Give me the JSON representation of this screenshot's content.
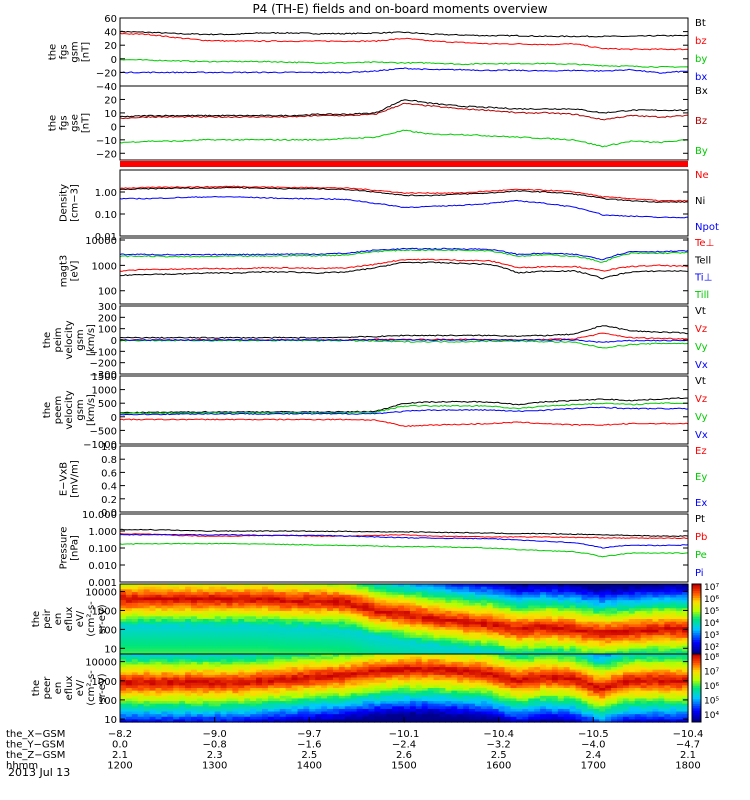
{
  "title": "P4 (TH-E) fields and on-board moments overview",
  "chart_data": [
    {
      "type": "line",
      "ylabel": [
        "the",
        "fgs",
        "gsm",
        "[nT]"
      ],
      "yticks": [
        "60",
        "40",
        "20",
        "0",
        "−20",
        "−40"
      ],
      "ylim": [
        -40,
        60
      ],
      "legend": [
        {
          "name": "Bt",
          "color": "#000000"
        },
        {
          "name": "bz",
          "color": "#ff0000"
        },
        {
          "name": "by",
          "color": "#00cc00"
        },
        {
          "name": "bx",
          "color": "#0000ff"
        }
      ],
      "series": [
        {
          "name": "Bt",
          "values": [
            40,
            39,
            37,
            36,
            36,
            38,
            38,
            37,
            37,
            38,
            39,
            36,
            35,
            34,
            34,
            33,
            33,
            33,
            33,
            34,
            34
          ]
        },
        {
          "name": "bz",
          "values": [
            37,
            36,
            31,
            27,
            26,
            26,
            26,
            26,
            26,
            26,
            30,
            26,
            24,
            22,
            22,
            21,
            22,
            15,
            14,
            14,
            14
          ]
        },
        {
          "name": "by",
          "values": [
            -1,
            -2,
            -3,
            -4,
            -4,
            -4,
            -5,
            -6,
            -6,
            -5,
            -6,
            -6,
            -8,
            -7,
            -7,
            -7,
            -8,
            -10,
            -11,
            -12,
            -12
          ]
        },
        {
          "name": "bx",
          "values": [
            -20,
            -20,
            -20,
            -20,
            -20,
            -20,
            -20,
            -20,
            -20,
            -18,
            -14,
            -16,
            -16,
            -17,
            -17,
            -18,
            -17,
            -18,
            -16,
            -21,
            -18
          ]
        }
      ]
    },
    {
      "type": "line",
      "ylabel": [
        "the",
        "fgs",
        "gse",
        "[nT]"
      ],
      "yticks": [
        "20",
        "10",
        "0",
        "−10",
        "−20"
      ],
      "ylim": [
        -25,
        30
      ],
      "legend": [
        {
          "name": "Bx",
          "color": "#000000"
        },
        {
          "name": "Bz",
          "color": "#b20000"
        },
        {
          "name": "By",
          "color": "#00cc00"
        }
      ],
      "series": [
        {
          "name": "Bx",
          "values": [
            7,
            8,
            8,
            8,
            8,
            8,
            8,
            9,
            9,
            10,
            20,
            17,
            15,
            14,
            13,
            13,
            13,
            10,
            12,
            12,
            12
          ]
        },
        {
          "name": "Bz",
          "values": [
            6,
            7,
            7,
            7,
            7,
            7,
            7,
            8,
            8,
            9,
            17,
            15,
            13,
            12,
            10,
            10,
            9,
            5,
            8,
            7,
            8
          ]
        },
        {
          "name": "By",
          "values": [
            -12,
            -11,
            -11,
            -10,
            -10,
            -10,
            -10,
            -10,
            -9,
            -8,
            -3,
            -6,
            -6,
            -7,
            -8,
            -9,
            -10,
            -15,
            -11,
            -12,
            -10
          ]
        }
      ]
    },
    {
      "type": "line",
      "ylabel": [
        "Density",
        "[cm−3]"
      ],
      "yscale": "log",
      "yticks": [
        "1.00",
        "0.10",
        "0.01"
      ],
      "ylim": [
        0.01,
        10
      ],
      "legend": [
        {
          "name": "Ne",
          "color": "#ff0000"
        },
        {
          "name": "Ni",
          "color": "#000000"
        },
        {
          "name": "Npot",
          "color": "#0000ff"
        }
      ],
      "series": [
        {
          "name": "Ne",
          "values": [
            1.5,
            1.6,
            1.7,
            1.7,
            1.8,
            1.7,
            1.6,
            1.6,
            1.5,
            1.2,
            0.9,
            0.9,
            0.9,
            1.1,
            1.3,
            1.2,
            1.0,
            0.6,
            0.5,
            0.4,
            0.4
          ]
        },
        {
          "name": "Ni",
          "values": [
            1.3,
            1.4,
            1.5,
            1.5,
            1.6,
            1.5,
            1.4,
            1.4,
            1.3,
            1.0,
            0.7,
            0.7,
            0.8,
            0.9,
            1.1,
            1.0,
            0.8,
            0.5,
            0.4,
            0.35,
            0.35
          ]
        },
        {
          "name": "Npot",
          "values": [
            0.5,
            0.5,
            0.55,
            0.6,
            0.6,
            0.55,
            0.5,
            0.5,
            0.45,
            0.3,
            0.2,
            0.22,
            0.25,
            0.3,
            0.4,
            0.3,
            0.2,
            0.09,
            0.08,
            0.07,
            0.07
          ]
        }
      ]
    },
    {
      "type": "line",
      "ylabel": [
        "magt3",
        "[eV]"
      ],
      "yscale": "log",
      "yticks": [
        "10000",
        "1000",
        "100"
      ],
      "ylim": [
        30,
        12000
      ],
      "legend": [
        {
          "name": "Te⊥",
          "color": "#ff0000"
        },
        {
          "name": "Tell",
          "color": "#000000"
        },
        {
          "name": "Ti⊥",
          "color": "#0000ff"
        },
        {
          "name": "Till",
          "color": "#00cc00"
        }
      ],
      "series": [
        {
          "name": "Te⊥",
          "values": [
            600,
            700,
            700,
            750,
            750,
            800,
            800,
            750,
            800,
            1100,
            1700,
            1700,
            1600,
            1500,
            800,
            900,
            900,
            600,
            900,
            1000,
            900
          ]
        },
        {
          "name": "Tell",
          "values": [
            400,
            450,
            450,
            500,
            500,
            550,
            550,
            500,
            550,
            800,
            1300,
            1300,
            1200,
            1100,
            500,
            600,
            600,
            300,
            550,
            600,
            600
          ]
        },
        {
          "name": "Ti⊥",
          "values": [
            2700,
            2700,
            2600,
            2600,
            2700,
            2700,
            2800,
            2800,
            3000,
            4000,
            4500,
            4500,
            4500,
            4300,
            2700,
            3000,
            2700,
            1700,
            3500,
            3500,
            3700
          ]
        },
        {
          "name": "Till",
          "values": [
            2300,
            2300,
            2200,
            2200,
            2300,
            2300,
            2400,
            2400,
            2600,
            3500,
            4000,
            4000,
            4000,
            3800,
            2300,
            2600,
            2300,
            1300,
            3000,
            3000,
            3200
          ]
        }
      ]
    },
    {
      "type": "line",
      "ylabel": [
        "the",
        "peim",
        "velocity",
        "gsm",
        "[km/s]"
      ],
      "yticks": [
        "300",
        "200",
        "100",
        "0",
        "−100",
        "−200",
        "−300"
      ],
      "ylim": [
        -300,
        300
      ],
      "legend": [
        {
          "name": "Vt",
          "color": "#000000"
        },
        {
          "name": "Vz",
          "color": "#ff0000"
        },
        {
          "name": "Vy",
          "color": "#00cc00"
        },
        {
          "name": "Vx",
          "color": "#0000ff"
        }
      ],
      "series": [
        {
          "name": "Vt",
          "values": [
            20,
            20,
            20,
            20,
            20,
            20,
            20,
            20,
            25,
            30,
            40,
            40,
            40,
            40,
            35,
            40,
            50,
            130,
            80,
            70,
            60
          ]
        },
        {
          "name": "Vz",
          "values": [
            0,
            0,
            0,
            0,
            0,
            0,
            0,
            0,
            0,
            5,
            5,
            5,
            5,
            5,
            0,
            5,
            10,
            60,
            20,
            15,
            10
          ]
        },
        {
          "name": "Vy",
          "values": [
            -5,
            -5,
            -5,
            -5,
            -5,
            -5,
            -5,
            -5,
            -5,
            -10,
            -15,
            -15,
            -15,
            -10,
            -10,
            -15,
            -20,
            -70,
            -40,
            -30,
            -30
          ]
        },
        {
          "name": "Vx",
          "values": [
            0,
            0,
            0,
            0,
            0,
            0,
            0,
            0,
            0,
            0,
            0,
            0,
            0,
            0,
            0,
            0,
            0,
            -20,
            -5,
            -5,
            -5
          ]
        }
      ]
    },
    {
      "type": "line",
      "ylabel": [
        "the",
        "peem",
        "velocity",
        "gsm",
        "[km/s]"
      ],
      "yticks": [
        "1500",
        "1000",
        "500",
        "0",
        "−500",
        "−1000"
      ],
      "ylim": [
        -1000,
        1500
      ],
      "legend": [
        {
          "name": "Vt",
          "color": "#000000"
        },
        {
          "name": "Vz",
          "color": "#ff0000"
        },
        {
          "name": "Vy",
          "color": "#00cc00"
        },
        {
          "name": "Vx",
          "color": "#0000ff"
        }
      ],
      "series": [
        {
          "name": "Vt",
          "values": [
            150,
            160,
            170,
            180,
            180,
            180,
            180,
            180,
            180,
            200,
            500,
            550,
            550,
            550,
            450,
            550,
            600,
            650,
            600,
            650,
            700
          ]
        },
        {
          "name": "Vz",
          "values": [
            -100,
            -100,
            -100,
            -100,
            -100,
            -100,
            -100,
            -100,
            -100,
            -120,
            -350,
            -300,
            -280,
            -250,
            -200,
            -250,
            -300,
            -300,
            -250,
            -250,
            -250
          ]
        },
        {
          "name": "Vy",
          "values": [
            120,
            130,
            140,
            150,
            150,
            150,
            150,
            150,
            150,
            170,
            400,
            400,
            400,
            400,
            300,
            400,
            450,
            500,
            450,
            500,
            500
          ]
        },
        {
          "name": "Vx",
          "values": [
            80,
            90,
            100,
            110,
            110,
            110,
            110,
            110,
            110,
            120,
            200,
            250,
            250,
            250,
            200,
            250,
            300,
            350,
            300,
            300,
            300
          ]
        }
      ]
    },
    {
      "type": "line",
      "ylabel": [
        "E−VxB",
        "[mV/m]"
      ],
      "yticks": [
        "1.0",
        "0.8",
        "0.6",
        "0.4",
        "0.2",
        "0.0"
      ],
      "ylim": [
        0,
        1
      ],
      "legend": [
        {
          "name": "Ez",
          "color": "#ff0000"
        },
        {
          "name": "Ey",
          "color": "#00cc00"
        },
        {
          "name": "Ex",
          "color": "#0000ff"
        }
      ],
      "series": []
    },
    {
      "type": "line",
      "ylabel": [
        "Pressure",
        "[nPa]"
      ],
      "yscale": "log",
      "yticks": [
        "10.000",
        "1.000",
        "0.100",
        "0.010",
        "0.001"
      ],
      "ylim": [
        0.001,
        10
      ],
      "legend": [
        {
          "name": "Pt",
          "color": "#000000"
        },
        {
          "name": "Pb",
          "color": "#ff0000"
        },
        {
          "name": "Pe",
          "color": "#00cc00"
        },
        {
          "name": "Pi",
          "color": "#0000ff"
        }
      ],
      "series": [
        {
          "name": "Pt",
          "values": [
            1.2,
            1.2,
            1.1,
            1.0,
            1.0,
            1.0,
            1.0,
            0.95,
            0.95,
            0.9,
            0.9,
            0.85,
            0.8,
            0.75,
            0.7,
            0.7,
            0.65,
            0.6,
            0.55,
            0.5,
            0.5
          ]
        },
        {
          "name": "Pb",
          "values": [
            0.7,
            0.65,
            0.55,
            0.5,
            0.5,
            0.55,
            0.55,
            0.5,
            0.5,
            0.55,
            0.6,
            0.5,
            0.48,
            0.45,
            0.45,
            0.45,
            0.42,
            0.4,
            0.38,
            0.38,
            0.38
          ]
        },
        {
          "name": "Pe",
          "values": [
            0.17,
            0.18,
            0.18,
            0.18,
            0.18,
            0.17,
            0.16,
            0.15,
            0.14,
            0.13,
            0.12,
            0.12,
            0.11,
            0.1,
            0.08,
            0.07,
            0.06,
            0.03,
            0.05,
            0.05,
            0.05
          ]
        },
        {
          "name": "Pi",
          "values": [
            0.6,
            0.6,
            0.6,
            0.6,
            0.6,
            0.55,
            0.55,
            0.55,
            0.5,
            0.45,
            0.4,
            0.38,
            0.37,
            0.35,
            0.3,
            0.25,
            0.2,
            0.1,
            0.15,
            0.14,
            0.15
          ]
        }
      ]
    },
    {
      "type": "heatmap",
      "ylabel": [
        "the",
        "peir",
        "en",
        "eflux",
        "eV/",
        "(cm²-s-",
        "sr-eV)"
      ],
      "yscale": "log",
      "yticks": [
        "10000",
        "1000",
        "100",
        "10"
      ],
      "ylim": [
        5,
        25000
      ],
      "colorbar": {
        "ticks": [
          "10⁷",
          "10⁶",
          "10⁵",
          "10⁴",
          "10³",
          "10²"
        ]
      },
      "peak_log_energy": [
        3.6,
        3.6,
        3.6,
        3.6,
        3.6,
        3.6,
        3.5,
        3.5,
        3.4,
        3.0,
        2.8,
        2.6,
        2.4,
        2.3,
        2.0,
        2.1,
        2.0,
        1.8,
        1.9,
        2.0,
        2.0
      ]
    },
    {
      "type": "heatmap",
      "ylabel": [
        "the",
        "peer",
        "en",
        "eflux",
        "eV/",
        "(cm²-s-",
        "sr-eV)"
      ],
      "yscale": "log",
      "yticks": [
        "10000",
        "1000",
        "100",
        "10"
      ],
      "ylim": [
        7,
        25000
      ],
      "colorbar": {
        "ticks": [
          "10⁸",
          "10⁷",
          "10⁶",
          "10⁵",
          "10⁴"
        ]
      },
      "peak_log_energy": [
        2.9,
        2.9,
        2.9,
        2.9,
        2.9,
        3.0,
        3.1,
        3.2,
        3.3,
        3.5,
        3.6,
        3.6,
        3.5,
        3.4,
        3.0,
        3.2,
        3.1,
        2.6,
        3.0,
        3.0,
        3.0
      ]
    }
  ],
  "xaxis": {
    "rows": [
      {
        "label": "the_X−GSM",
        "values": [
          "−8.2",
          "−9.0",
          "−9.7",
          "−10.1",
          "−10.4",
          "−10.5",
          "−10.4"
        ]
      },
      {
        "label": "the_Y−GSM",
        "values": [
          "0.0",
          "−0.8",
          "−1.6",
          "−2.4",
          "−3.2",
          "−4.0",
          "−4.7"
        ]
      },
      {
        "label": "the_Z−GSM",
        "values": [
          "2.1",
          "2.3",
          "2.5",
          "2.6",
          "2.5",
          "2.4",
          "2.1"
        ]
      },
      {
        "label": "hhmm",
        "values": [
          "1200",
          "1300",
          "1400",
          "1500",
          "1600",
          "1700",
          "1800"
        ]
      }
    ],
    "date": "2013 Jul 13"
  }
}
